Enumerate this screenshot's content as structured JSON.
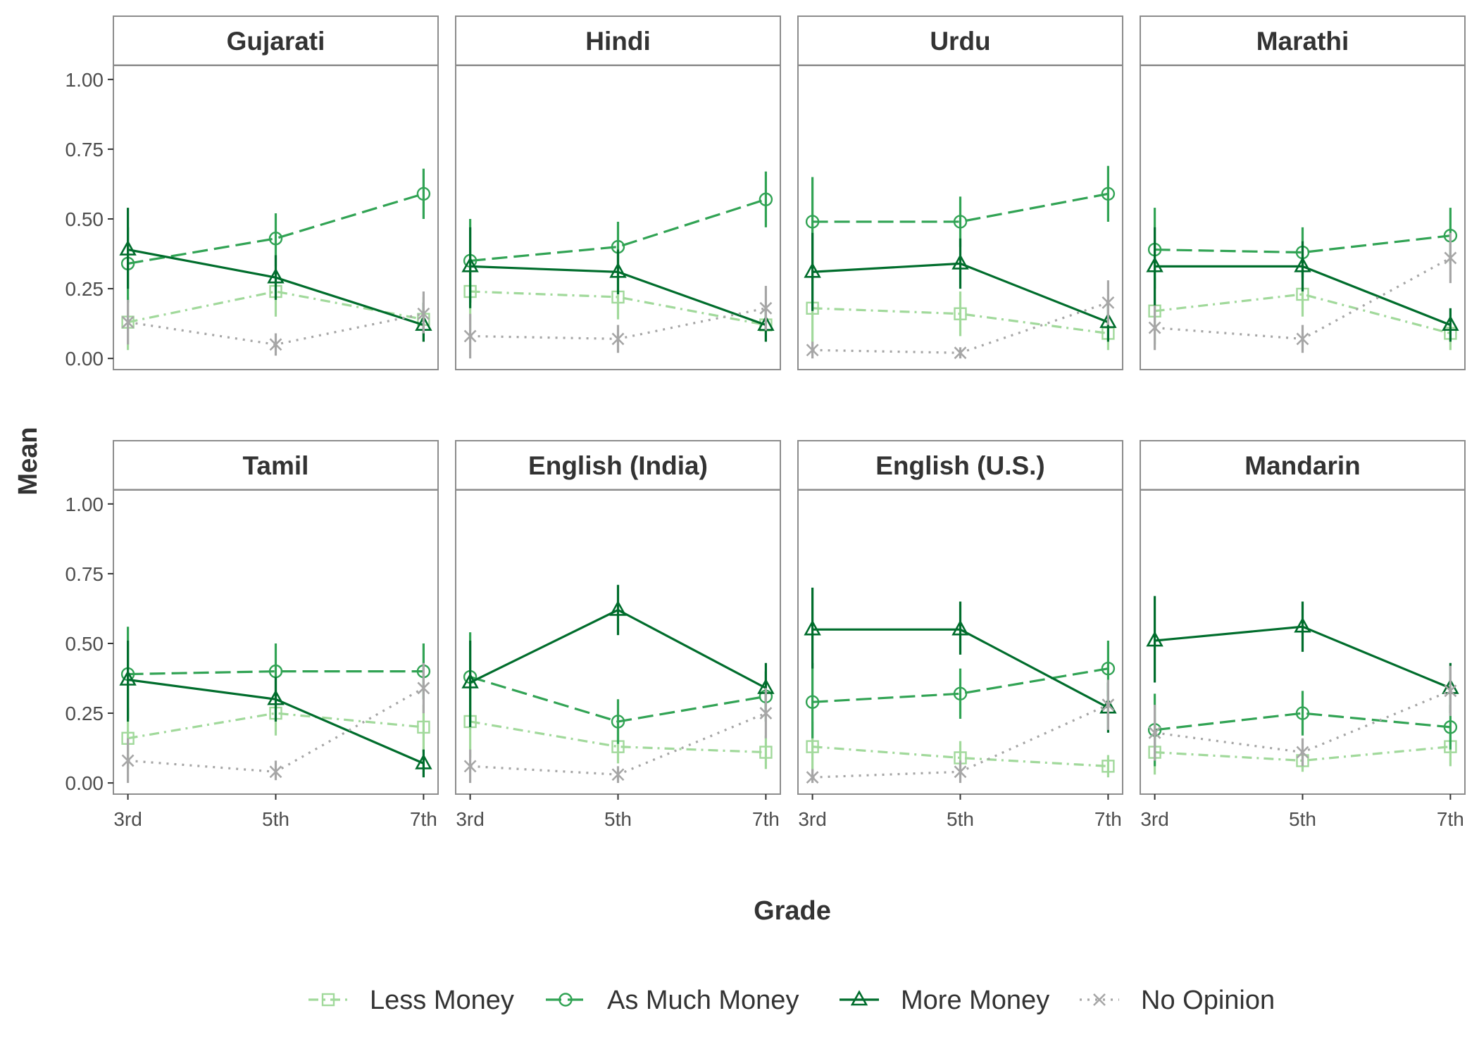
{
  "chart_data": {
    "type": "line",
    "xlabel": "Grade",
    "ylabel": "Mean",
    "x": [
      "3rd",
      "5th",
      "7th"
    ],
    "ylim": [
      -0.04,
      1.05
    ],
    "yticks": [
      0.0,
      0.25,
      0.5,
      0.75,
      1.0
    ],
    "ytick_labels": [
      "0.00",
      "0.25",
      "0.50",
      "0.75",
      "1.00"
    ],
    "legend_position": "bottom",
    "series_styles": [
      {
        "name": "Less Money",
        "color": "#a1d99b",
        "dash": "dotdash",
        "marker": "square"
      },
      {
        "name": "As Much Money",
        "color": "#31a354",
        "dash": "longdash",
        "marker": "circle"
      },
      {
        "name": "More Money",
        "color": "#006d2c",
        "dash": "solid",
        "marker": "triangle"
      },
      {
        "name": "No Opinion",
        "color": "#a6a6a6",
        "dash": "dotted",
        "marker": "x"
      }
    ],
    "panels": [
      {
        "title": "Gujarati",
        "series": [
          {
            "name": "Less Money",
            "values": [
              0.13,
              0.24,
              0.14
            ],
            "lower": [
              0.03,
              0.15,
              0.06
            ],
            "upper": [
              0.22,
              0.33,
              0.22
            ]
          },
          {
            "name": "As Much Money",
            "values": [
              0.34,
              0.43,
              0.59
            ],
            "lower": [
              0.2,
              0.33,
              0.5
            ],
            "upper": [
              0.47,
              0.52,
              0.68
            ]
          },
          {
            "name": "More Money",
            "values": [
              0.39,
              0.29,
              0.12
            ],
            "lower": [
              0.25,
              0.21,
              0.06
            ],
            "upper": [
              0.54,
              0.37,
              0.2
            ]
          },
          {
            "name": "No Opinion",
            "values": [
              0.13,
              0.05,
              0.16
            ],
            "lower": [
              0.05,
              0.01,
              0.09
            ],
            "upper": [
              0.21,
              0.09,
              0.24
            ]
          }
        ]
      },
      {
        "title": "Hindi",
        "series": [
          {
            "name": "Less Money",
            "values": [
              0.24,
              0.22,
              0.12
            ],
            "lower": [
              0.1,
              0.14,
              0.06
            ],
            "upper": [
              0.38,
              0.3,
              0.18
            ]
          },
          {
            "name": "As Much Money",
            "values": [
              0.35,
              0.4,
              0.57
            ],
            "lower": [
              0.2,
              0.31,
              0.47
            ],
            "upper": [
              0.5,
              0.49,
              0.67
            ]
          },
          {
            "name": "More Money",
            "values": [
              0.33,
              0.31,
              0.12
            ],
            "lower": [
              0.18,
              0.23,
              0.06
            ],
            "upper": [
              0.47,
              0.39,
              0.18
            ]
          },
          {
            "name": "No Opinion",
            "values": [
              0.08,
              0.07,
              0.18
            ],
            "lower": [
              0.0,
              0.02,
              0.1
            ],
            "upper": [
              0.16,
              0.12,
              0.26
            ]
          }
        ]
      },
      {
        "title": "Urdu",
        "series": [
          {
            "name": "Less Money",
            "values": [
              0.18,
              0.16,
              0.09
            ],
            "lower": [
              0.05,
              0.08,
              0.03
            ],
            "upper": [
              0.31,
              0.24,
              0.15
            ]
          },
          {
            "name": "As Much Money",
            "values": [
              0.49,
              0.49,
              0.59
            ],
            "lower": [
              0.33,
              0.4,
              0.49
            ],
            "upper": [
              0.65,
              0.58,
              0.69
            ]
          },
          {
            "name": "More Money",
            "values": [
              0.31,
              0.34,
              0.13
            ],
            "lower": [
              0.17,
              0.25,
              0.06
            ],
            "upper": [
              0.45,
              0.43,
              0.2
            ]
          },
          {
            "name": "No Opinion",
            "values": [
              0.03,
              0.02,
              0.2
            ],
            "lower": [
              0.0,
              0.0,
              0.12
            ],
            "upper": [
              0.06,
              0.04,
              0.28
            ]
          }
        ]
      },
      {
        "title": "Marathi",
        "series": [
          {
            "name": "Less Money",
            "values": [
              0.17,
              0.23,
              0.09
            ],
            "lower": [
              0.05,
              0.15,
              0.03
            ],
            "upper": [
              0.29,
              0.31,
              0.15
            ]
          },
          {
            "name": "As Much Money",
            "values": [
              0.39,
              0.38,
              0.44
            ],
            "lower": [
              0.25,
              0.29,
              0.34
            ],
            "upper": [
              0.54,
              0.47,
              0.54
            ]
          },
          {
            "name": "More Money",
            "values": [
              0.33,
              0.33,
              0.12
            ],
            "lower": [
              0.19,
              0.24,
              0.06
            ],
            "upper": [
              0.47,
              0.42,
              0.18
            ]
          },
          {
            "name": "No Opinion",
            "values": [
              0.11,
              0.07,
              0.36
            ],
            "lower": [
              0.03,
              0.02,
              0.27
            ],
            "upper": [
              0.19,
              0.12,
              0.45
            ]
          }
        ]
      },
      {
        "title": "Tamil",
        "series": [
          {
            "name": "Less Money",
            "values": [
              0.16,
              0.25,
              0.2
            ],
            "lower": [
              0.05,
              0.17,
              0.11
            ],
            "upper": [
              0.27,
              0.33,
              0.28
            ]
          },
          {
            "name": "As Much Money",
            "values": [
              0.39,
              0.4,
              0.4
            ],
            "lower": [
              0.23,
              0.31,
              0.3
            ],
            "upper": [
              0.56,
              0.5,
              0.5
            ]
          },
          {
            "name": "More Money",
            "values": [
              0.37,
              0.3,
              0.07
            ],
            "lower": [
              0.22,
              0.22,
              0.02
            ],
            "upper": [
              0.51,
              0.38,
              0.12
            ]
          },
          {
            "name": "No Opinion",
            "values": [
              0.08,
              0.04,
              0.34
            ],
            "lower": [
              0.0,
              0.01,
              0.25
            ],
            "upper": [
              0.16,
              0.08,
              0.43
            ]
          }
        ]
      },
      {
        "title": "English (India)",
        "series": [
          {
            "name": "Less Money",
            "values": [
              0.22,
              0.13,
              0.11
            ],
            "lower": [
              0.09,
              0.07,
              0.05
            ],
            "upper": [
              0.35,
              0.19,
              0.17
            ]
          },
          {
            "name": "As Much Money",
            "values": [
              0.38,
              0.22,
              0.31
            ],
            "lower": [
              0.22,
              0.14,
              0.22
            ],
            "upper": [
              0.54,
              0.3,
              0.4
            ]
          },
          {
            "name": "More Money",
            "values": [
              0.36,
              0.62,
              0.34
            ],
            "lower": [
              0.2,
              0.53,
              0.25
            ],
            "upper": [
              0.51,
              0.71,
              0.43
            ]
          },
          {
            "name": "No Opinion",
            "values": [
              0.06,
              0.03,
              0.25
            ],
            "lower": [
              0.0,
              0.0,
              0.16
            ],
            "upper": [
              0.12,
              0.06,
              0.34
            ]
          }
        ]
      },
      {
        "title": "English (U.S.)",
        "series": [
          {
            "name": "Less Money",
            "values": [
              0.13,
              0.09,
              0.06
            ],
            "lower": [
              0.04,
              0.03,
              0.02
            ],
            "upper": [
              0.22,
              0.15,
              0.1
            ]
          },
          {
            "name": "As Much Money",
            "values": [
              0.29,
              0.32,
              0.41
            ],
            "lower": [
              0.16,
              0.23,
              0.31
            ],
            "upper": [
              0.43,
              0.41,
              0.51
            ]
          },
          {
            "name": "More Money",
            "values": [
              0.55,
              0.55,
              0.27
            ],
            "lower": [
              0.41,
              0.46,
              0.18
            ],
            "upper": [
              0.7,
              0.65,
              0.36
            ]
          },
          {
            "name": "No Opinion",
            "values": [
              0.02,
              0.04,
              0.28
            ],
            "lower": [
              0.0,
              0.0,
              0.19
            ],
            "upper": [
              0.05,
              0.08,
              0.37
            ]
          }
        ]
      },
      {
        "title": "Mandarin",
        "series": [
          {
            "name": "Less Money",
            "values": [
              0.11,
              0.08,
              0.13
            ],
            "lower": [
              0.03,
              0.04,
              0.06
            ],
            "upper": [
              0.19,
              0.12,
              0.2
            ]
          },
          {
            "name": "As Much Money",
            "values": [
              0.19,
              0.25,
              0.2
            ],
            "lower": [
              0.06,
              0.17,
              0.12
            ],
            "upper": [
              0.32,
              0.33,
              0.28
            ]
          },
          {
            "name": "More Money",
            "values": [
              0.51,
              0.56,
              0.34
            ],
            "lower": [
              0.36,
              0.47,
              0.25
            ],
            "upper": [
              0.67,
              0.65,
              0.43
            ]
          },
          {
            "name": "No Opinion",
            "values": [
              0.18,
              0.11,
              0.33
            ],
            "lower": [
              0.08,
              0.06,
              0.24
            ],
            "upper": [
              0.28,
              0.16,
              0.42
            ]
          }
        ]
      }
    ]
  }
}
